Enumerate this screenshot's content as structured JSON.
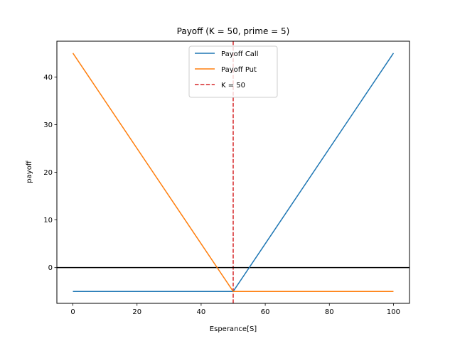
{
  "chart_data": {
    "type": "line",
    "title": "Payoff (K = 50, prime = 5)",
    "xlabel": "Esperance[S]",
    "ylabel": "payoff",
    "xlim": [
      -5,
      105
    ],
    "ylim": [
      -7.5,
      47.5
    ],
    "x_ticks": [
      0,
      20,
      40,
      60,
      80,
      100
    ],
    "y_ticks": [
      0,
      10,
      20,
      30,
      40
    ],
    "grid": false,
    "legend_position": "top-center",
    "series": [
      {
        "name": "Payoff Call",
        "color": "#1f77b4",
        "style": "solid",
        "x": [
          0,
          50,
          100
        ],
        "y": [
          -5,
          -5,
          45
        ]
      },
      {
        "name": "Payoff Put",
        "color": "#ff7f0e",
        "style": "solid",
        "x": [
          0,
          50,
          100
        ],
        "y": [
          45,
          -5,
          -5
        ]
      }
    ],
    "reference_lines": [
      {
        "name": "K = 50",
        "orientation": "vertical",
        "value": 50,
        "color": "#d62728",
        "style": "dashed",
        "in_legend": true
      },
      {
        "orientation": "horizontal",
        "value": 0,
        "color": "#000000",
        "style": "solid",
        "in_legend": false
      }
    ]
  }
}
